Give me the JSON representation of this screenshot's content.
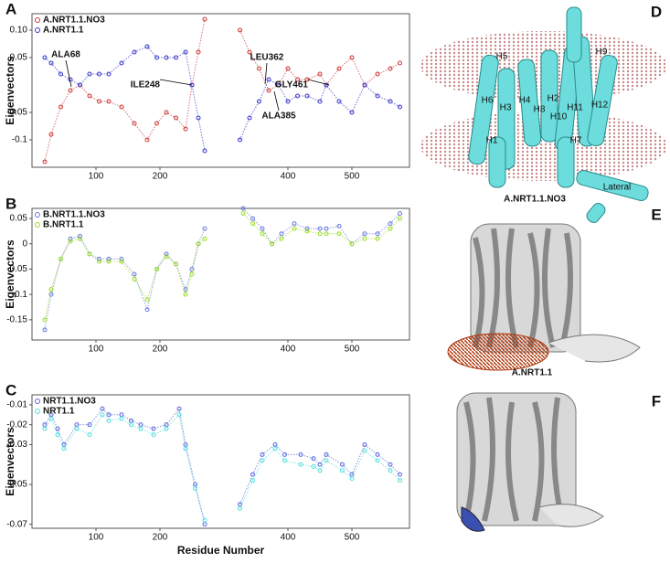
{
  "chart_data": [
    {
      "type": "scatter",
      "panel": "A",
      "ylabel": "Eigenvectors",
      "x": [
        20,
        30,
        45,
        60,
        75,
        90,
        105,
        120,
        140,
        160,
        180,
        195,
        210,
        225,
        240,
        250,
        260,
        270,
        325,
        340,
        355,
        370,
        385,
        400,
        415,
        430,
        450,
        460,
        480,
        500,
        520,
        540,
        560,
        575
      ],
      "xlim": [
        0,
        590
      ],
      "xticks": [
        100,
        200,
        400,
        500
      ],
      "ylim": [
        -0.15,
        0.13
      ],
      "yticks": [
        {
          "value": 0.1,
          "label": "0.10"
        },
        0.05,
        -0.05,
        -0.1
      ],
      "legend": "upper left",
      "series": [
        {
          "name": "A.NRT1.1.NO3",
          "color": "#cc3333",
          "values": [
            -0.14,
            -0.09,
            -0.04,
            -0.01,
            0.0,
            -0.02,
            -0.03,
            -0.03,
            -0.04,
            -0.07,
            -0.1,
            -0.07,
            -0.05,
            -0.06,
            -0.08,
            0.0,
            0.06,
            0.12,
            0.1,
            0.06,
            0.03,
            -0.01,
            0.0,
            0.03,
            0.01,
            0.01,
            0.02,
            0.0,
            0.03,
            0.05,
            0.0,
            0.02,
            0.03,
            0.04
          ]
        },
        {
          "name": "A.NRT1.1",
          "color": "#3333cc",
          "values": [
            0.05,
            0.04,
            0.02,
            0.01,
            0.0,
            0.02,
            0.02,
            0.02,
            0.04,
            0.06,
            0.07,
            0.05,
            0.05,
            0.05,
            0.06,
            0.0,
            -0.06,
            -0.12,
            -0.1,
            -0.06,
            -0.03,
            0.01,
            0.0,
            -0.03,
            -0.02,
            -0.02,
            -0.03,
            0.0,
            -0.03,
            -0.05,
            0.0,
            -0.02,
            -0.03,
            -0.04
          ]
        }
      ],
      "annotations": [
        "ALA68",
        "ILE248",
        "LEU362",
        "ALA385",
        "GLY461"
      ]
    },
    {
      "type": "scatter",
      "panel": "B",
      "ylabel": "Eigenvectors",
      "x": [
        20,
        30,
        45,
        60,
        75,
        90,
        105,
        120,
        140,
        160,
        180,
        195,
        210,
        225,
        240,
        250,
        260,
        270,
        330,
        345,
        360,
        375,
        390,
        410,
        430,
        450,
        460,
        480,
        500,
        520,
        540,
        560,
        575
      ],
      "xlim": [
        0,
        590
      ],
      "xticks": [
        100,
        200,
        400,
        500
      ],
      "ylim": [
        -0.19,
        0.07
      ],
      "yticks": [
        0.05,
        0,
        -0.05,
        -0.1,
        -0.15
      ],
      "legend": "upper left",
      "series": [
        {
          "name": "B.NRT1.1.NO3",
          "color": "#6677dd",
          "values": [
            -0.17,
            -0.1,
            -0.03,
            0.01,
            0.015,
            -0.02,
            -0.03,
            -0.03,
            -0.03,
            -0.06,
            -0.13,
            -0.05,
            -0.02,
            -0.04,
            -0.09,
            -0.05,
            0.0,
            0.03,
            0.07,
            0.05,
            0.03,
            0.0,
            0.02,
            0.04,
            0.03,
            0.03,
            0.03,
            0.035,
            0.0,
            0.02,
            0.02,
            0.04,
            0.06
          ]
        },
        {
          "name": "B.NRT1.1",
          "color": "#99dd22",
          "values": [
            -0.15,
            -0.09,
            -0.03,
            0.005,
            0.01,
            -0.02,
            -0.035,
            -0.035,
            -0.035,
            -0.07,
            -0.11,
            -0.05,
            -0.025,
            -0.04,
            -0.1,
            -0.06,
            0.0,
            0.01,
            0.06,
            0.04,
            0.02,
            0.0,
            0.01,
            0.03,
            0.025,
            0.02,
            0.02,
            0.02,
            0.0,
            0.01,
            0.01,
            0.03,
            0.05
          ]
        }
      ]
    },
    {
      "type": "scatter",
      "panel": "C",
      "ylabel": "Eigenvectors",
      "xlabel": "Residue Number",
      "x": [
        20,
        30,
        40,
        50,
        70,
        90,
        110,
        120,
        140,
        155,
        170,
        190,
        210,
        230,
        240,
        255,
        270,
        325,
        345,
        360,
        380,
        395,
        420,
        440,
        450,
        460,
        485,
        500,
        520,
        540,
        560,
        575
      ],
      "xlim": [
        0,
        590
      ],
      "xticks": [
        100,
        200,
        400,
        500
      ],
      "ylim": [
        -0.072,
        -0.005
      ],
      "yticks": [
        -0.01,
        -0.02,
        -0.03,
        -0.05,
        -0.07
      ],
      "legend": "upper left",
      "series": [
        {
          "name": "NRT1.1.NO3",
          "color": "#5566dd",
          "values": [
            -0.02,
            -0.015,
            -0.022,
            -0.03,
            -0.02,
            -0.02,
            -0.012,
            -0.015,
            -0.015,
            -0.018,
            -0.02,
            -0.022,
            -0.02,
            -0.012,
            -0.03,
            -0.05,
            -0.07,
            -0.06,
            -0.045,
            -0.035,
            -0.03,
            -0.035,
            -0.035,
            -0.037,
            -0.04,
            -0.035,
            -0.04,
            -0.045,
            -0.03,
            -0.035,
            -0.04,
            -0.045
          ]
        },
        {
          "name": "NRT1.1",
          "color": "#55dddd",
          "values": [
            -0.022,
            -0.017,
            -0.025,
            -0.032,
            -0.022,
            -0.025,
            -0.015,
            -0.018,
            -0.017,
            -0.02,
            -0.022,
            -0.025,
            -0.022,
            -0.015,
            -0.032,
            -0.052,
            -0.068,
            -0.062,
            -0.048,
            -0.038,
            -0.032,
            -0.038,
            -0.04,
            -0.041,
            -0.043,
            -0.038,
            -0.043,
            -0.047,
            -0.033,
            -0.038,
            -0.043,
            -0.048
          ]
        }
      ]
    }
  ],
  "structures": [
    {
      "panel": "D",
      "labels": [
        "H5",
        "H9",
        "H6",
        "H3",
        "H4",
        "H2",
        "H8",
        "H10",
        "H11",
        "H12",
        "H1",
        "H7",
        "Lateral"
      ],
      "caption": "A.NRT1.1.NO3"
    },
    {
      "panel": "E",
      "caption": "A.NRT1.1"
    },
    {
      "panel": "F"
    }
  ]
}
